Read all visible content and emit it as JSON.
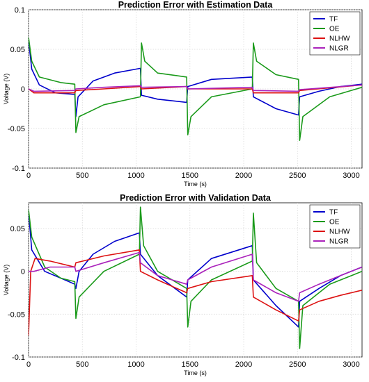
{
  "chart_data": [
    {
      "type": "line",
      "title": "Prediction Error with Estimation Data",
      "xlabel": "Time (s)",
      "ylabel": "Voltage (V)",
      "xlim": [
        0,
        3100
      ],
      "ylim": [
        -0.1,
        0.1
      ],
      "xticks": [
        0,
        500,
        1000,
        1500,
        2000,
        2500,
        3000
      ],
      "yticks": [
        -0.1,
        -0.05,
        0,
        0.05,
        0.1
      ],
      "ytick_labels": [
        "-0.1",
        "-0.05",
        "0",
        "0.05",
        "0.1"
      ],
      "grid": true,
      "legend_position": "top-right",
      "series": [
        {
          "name": "TF",
          "color": "#0000cc",
          "points": [
            [
              0,
              0.062
            ],
            [
              30,
              0.025
            ],
            [
              100,
              0.005
            ],
            [
              250,
              -0.005
            ],
            [
              430,
              -0.007
            ],
            [
              440,
              -0.035
            ],
            [
              460,
              -0.01
            ],
            [
              600,
              0.01
            ],
            [
              800,
              0.02
            ],
            [
              1040,
              0.026
            ],
            [
              1050,
              -0.008
            ],
            [
              1200,
              -0.013
            ],
            [
              1470,
              -0.017
            ],
            [
              1480,
              0.003
            ],
            [
              1700,
              0.012
            ],
            [
              2080,
              0.015
            ],
            [
              2090,
              -0.01
            ],
            [
              2300,
              -0.025
            ],
            [
              2510,
              -0.033
            ],
            [
              2520,
              -0.01
            ],
            [
              2700,
              -0.003
            ],
            [
              2900,
              0.003
            ],
            [
              3100,
              0.006
            ]
          ]
        },
        {
          "name": "OE",
          "color": "#1a9a1a",
          "points": [
            [
              0,
              0.065
            ],
            [
              30,
              0.035
            ],
            [
              100,
              0.015
            ],
            [
              300,
              0.008
            ],
            [
              430,
              0.006
            ],
            [
              440,
              -0.055
            ],
            [
              470,
              -0.035
            ],
            [
              700,
              -0.02
            ],
            [
              1040,
              -0.01
            ],
            [
              1050,
              0.058
            ],
            [
              1080,
              0.035
            ],
            [
              1200,
              0.02
            ],
            [
              1470,
              0.015
            ],
            [
              1480,
              -0.058
            ],
            [
              1510,
              -0.035
            ],
            [
              1700,
              -0.01
            ],
            [
              2080,
              0.0
            ],
            [
              2090,
              0.058
            ],
            [
              2120,
              0.035
            ],
            [
              2300,
              0.018
            ],
            [
              2510,
              0.012
            ],
            [
              2520,
              -0.065
            ],
            [
              2550,
              -0.035
            ],
            [
              2800,
              -0.01
            ],
            [
              3100,
              0.002
            ]
          ]
        },
        {
          "name": "NLHW",
          "color": "#dd1111",
          "points": [
            [
              0,
              0.0
            ],
            [
              50,
              -0.005
            ],
            [
              430,
              -0.005
            ],
            [
              440,
              -0.002
            ],
            [
              700,
              0.0
            ],
            [
              1040,
              0.003
            ],
            [
              1050,
              0.0
            ],
            [
              1470,
              0.003
            ],
            [
              1480,
              0.0
            ],
            [
              2080,
              0.0
            ],
            [
              2090,
              -0.005
            ],
            [
              2510,
              -0.005
            ],
            [
              2520,
              -0.002
            ],
            [
              3100,
              0.005
            ]
          ]
        },
        {
          "name": "NLGR",
          "color": "#aa22bb",
          "points": [
            [
              0,
              0.0
            ],
            [
              50,
              -0.003
            ],
            [
              430,
              -0.002
            ],
            [
              440,
              0.0
            ],
            [
              700,
              0.002
            ],
            [
              1040,
              0.004
            ],
            [
              1050,
              0.002
            ],
            [
              1470,
              0.003
            ],
            [
              1480,
              0.0
            ],
            [
              2080,
              0.002
            ],
            [
              2090,
              -0.002
            ],
            [
              2510,
              -0.003
            ],
            [
              2520,
              -0.001
            ],
            [
              3100,
              0.005
            ]
          ]
        }
      ]
    },
    {
      "type": "line",
      "title": "Prediction Error with Validation Data",
      "xlabel": "Time (s)",
      "ylabel": "Voltage (V)",
      "xlim": [
        0,
        3100
      ],
      "ylim": [
        -0.1,
        0.08
      ],
      "xticks": [
        0,
        500,
        1000,
        1500,
        2000,
        2500,
        3000
      ],
      "yticks": [
        -0.1,
        -0.05,
        0,
        0.05
      ],
      "ytick_labels": [
        "-0.1",
        "-0.05",
        "0",
        "0.05"
      ],
      "grid": true,
      "legend_position": "top-right",
      "series": [
        {
          "name": "TF",
          "color": "#0000cc",
          "points": [
            [
              0,
              0.07
            ],
            [
              30,
              0.025
            ],
            [
              150,
              0.0
            ],
            [
              300,
              -0.008
            ],
            [
              430,
              -0.015
            ],
            [
              440,
              -0.02
            ],
            [
              470,
              0.0
            ],
            [
              600,
              0.02
            ],
            [
              800,
              0.035
            ],
            [
              1030,
              0.045
            ],
            [
              1040,
              0.02
            ],
            [
              1200,
              -0.005
            ],
            [
              1470,
              -0.03
            ],
            [
              1480,
              -0.01
            ],
            [
              1700,
              0.015
            ],
            [
              2080,
              0.03
            ],
            [
              2090,
              -0.01
            ],
            [
              2300,
              -0.04
            ],
            [
              2510,
              -0.065
            ],
            [
              2520,
              -0.035
            ],
            [
              2700,
              -0.02
            ],
            [
              2900,
              -0.005
            ],
            [
              3100,
              0.005
            ]
          ]
        },
        {
          "name": "OE",
          "color": "#1a9a1a",
          "points": [
            [
              0,
              0.072
            ],
            [
              30,
              0.04
            ],
            [
              150,
              0.005
            ],
            [
              300,
              -0.008
            ],
            [
              430,
              -0.012
            ],
            [
              440,
              -0.055
            ],
            [
              470,
              -0.03
            ],
            [
              700,
              0.0
            ],
            [
              1030,
              0.02
            ],
            [
              1040,
              0.075
            ],
            [
              1070,
              0.03
            ],
            [
              1200,
              0.0
            ],
            [
              1470,
              -0.02
            ],
            [
              1480,
              -0.065
            ],
            [
              1510,
              -0.035
            ],
            [
              1700,
              -0.01
            ],
            [
              2080,
              0.012
            ],
            [
              2090,
              0.068
            ],
            [
              2120,
              0.01
            ],
            [
              2300,
              -0.02
            ],
            [
              2510,
              -0.035
            ],
            [
              2520,
              -0.09
            ],
            [
              2550,
              -0.04
            ],
            [
              2800,
              -0.015
            ],
            [
              3100,
              0.0
            ]
          ]
        },
        {
          "name": "NLHW",
          "color": "#dd1111",
          "points": [
            [
              0,
              -0.075
            ],
            [
              20,
              0.0
            ],
            [
              60,
              0.015
            ],
            [
              200,
              0.012
            ],
            [
              430,
              0.005
            ],
            [
              440,
              0.01
            ],
            [
              700,
              0.018
            ],
            [
              1030,
              0.025
            ],
            [
              1040,
              0.0
            ],
            [
              1200,
              -0.01
            ],
            [
              1470,
              -0.025
            ],
            [
              1480,
              -0.02
            ],
            [
              1700,
              -0.012
            ],
            [
              2080,
              -0.005
            ],
            [
              2090,
              -0.03
            ],
            [
              2300,
              -0.045
            ],
            [
              2510,
              -0.058
            ],
            [
              2520,
              -0.045
            ],
            [
              2700,
              -0.035
            ],
            [
              2900,
              -0.028
            ],
            [
              3100,
              -0.022
            ]
          ]
        },
        {
          "name": "NLGR",
          "color": "#aa22bb",
          "points": [
            [
              0,
              0.0
            ],
            [
              50,
              0.0
            ],
            [
              200,
              0.005
            ],
            [
              430,
              0.005
            ],
            [
              440,
              0.0
            ],
            [
              700,
              0.01
            ],
            [
              1030,
              0.022
            ],
            [
              1040,
              0.01
            ],
            [
              1200,
              -0.005
            ],
            [
              1470,
              -0.015
            ],
            [
              1480,
              -0.01
            ],
            [
              1700,
              0.005
            ],
            [
              2080,
              0.02
            ],
            [
              2090,
              -0.01
            ],
            [
              2300,
              -0.025
            ],
            [
              2510,
              -0.035
            ],
            [
              2520,
              -0.025
            ],
            [
              2700,
              -0.015
            ],
            [
              2900,
              -0.005
            ],
            [
              3100,
              0.005
            ]
          ]
        }
      ]
    }
  ]
}
